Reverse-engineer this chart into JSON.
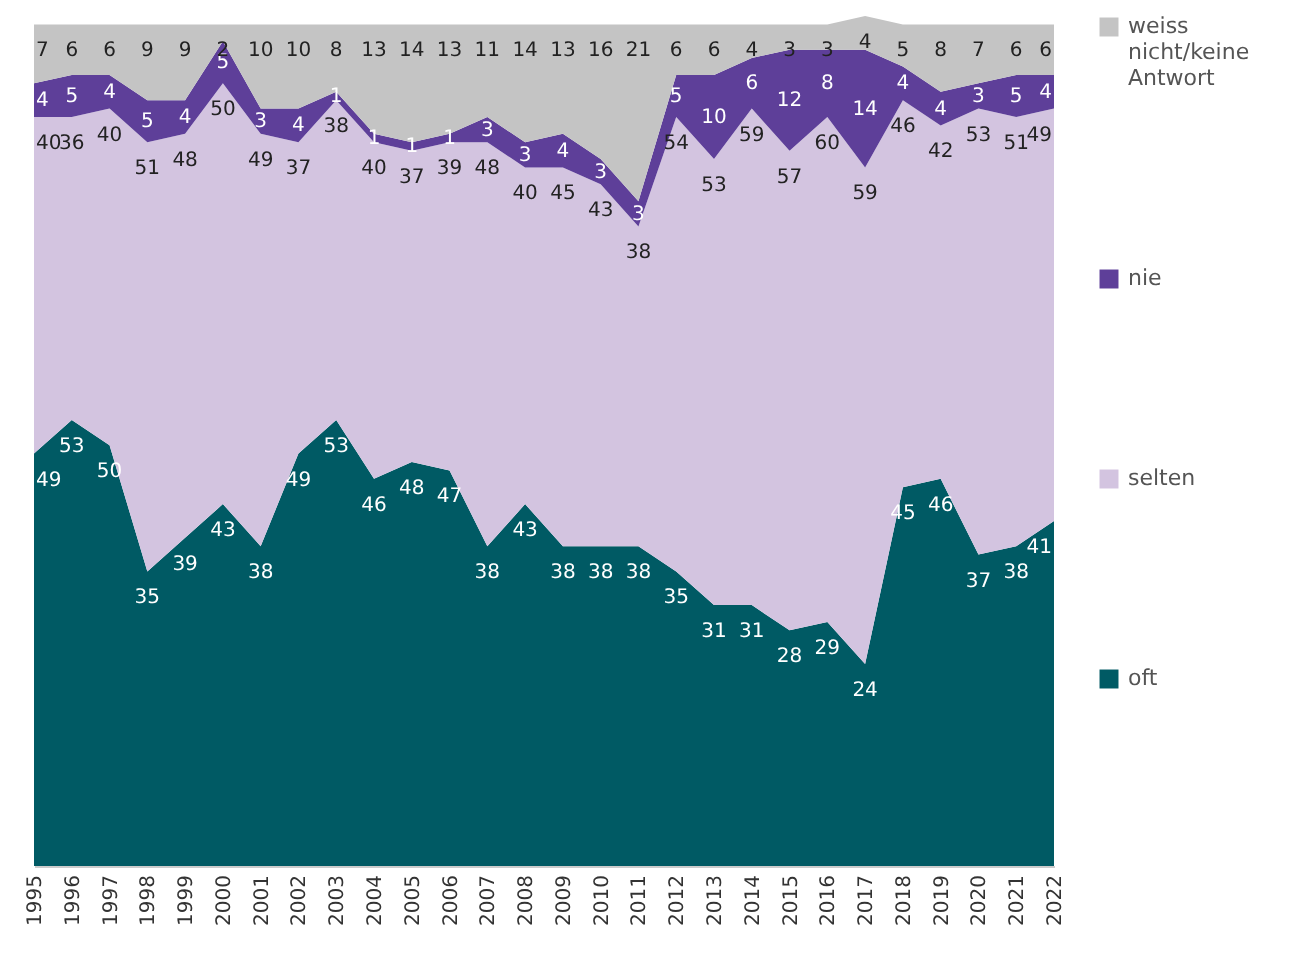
{
  "chart_data": {
    "type": "area",
    "stacked": true,
    "data_labels": true,
    "legend": "right",
    "grid": false,
    "categories": [
      "1995",
      "1996",
      "1997",
      "1998",
      "1999",
      "2000",
      "2001",
      "2002",
      "2003",
      "2004",
      "2005",
      "2006",
      "2007",
      "2008",
      "2009",
      "2010",
      "2011",
      "2012",
      "2013",
      "2014",
      "2015",
      "2016",
      "2017",
      "2018",
      "2019",
      "2020",
      "2021",
      "2022"
    ],
    "series": [
      {
        "name": "oft",
        "color": "#005a64",
        "values": [
          49,
          53,
          50,
          35,
          39,
          43,
          38,
          49,
          53,
          46,
          48,
          47,
          38,
          43,
          38,
          38,
          38,
          35,
          31,
          31,
          28,
          29,
          24,
          45,
          46,
          37,
          38,
          41
        ]
      },
      {
        "name": "selten",
        "color": "#d3c4e0",
        "values": [
          40,
          36,
          40,
          51,
          48,
          50,
          49,
          37,
          38,
          40,
          37,
          39,
          48,
          40,
          45,
          43,
          38,
          54,
          53,
          59,
          57,
          60,
          59,
          46,
          42,
          53,
          51,
          49
        ]
      },
      {
        "name": "nie",
        "color": "#5e3f99",
        "values": [
          4,
          5,
          4,
          5,
          4,
          5,
          3,
          4,
          1,
          1,
          1,
          1,
          3,
          3,
          4,
          3,
          3,
          5,
          10,
          6,
          12,
          8,
          14,
          4,
          4,
          3,
          5,
          4
        ]
      },
      {
        "name": "weiss nicht/keine Antwort",
        "color": "#c4c4c4",
        "values": [
          7,
          6,
          6,
          9,
          9,
          2,
          10,
          10,
          8,
          13,
          14,
          13,
          11,
          14,
          13,
          16,
          21,
          6,
          6,
          4,
          3,
          3,
          4,
          5,
          8,
          7,
          6,
          6
        ]
      }
    ]
  }
}
